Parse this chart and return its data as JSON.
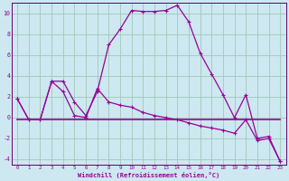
{
  "xlabel": "Windchill (Refroidissement éolien,°C)",
  "bg_color": "#cde8f0",
  "grid_color": "#a0c8b8",
  "line_color": "#990099",
  "spine_color": "#660066",
  "xlim": [
    -0.5,
    23.5
  ],
  "ylim": [
    -4.5,
    11.0
  ],
  "yticks": [
    -4,
    -2,
    0,
    2,
    4,
    6,
    8,
    10
  ],
  "xticks": [
    0,
    1,
    2,
    3,
    4,
    5,
    6,
    7,
    8,
    9,
    10,
    11,
    12,
    13,
    14,
    15,
    16,
    17,
    18,
    19,
    20,
    21,
    22,
    23
  ],
  "curve1_x": [
    0,
    1,
    2,
    3,
    4,
    5,
    6,
    7,
    8,
    9,
    10,
    11,
    12,
    13,
    14,
    15,
    16,
    17,
    18,
    19,
    20,
    21,
    22,
    23
  ],
  "curve1_y": [
    1.8,
    -0.2,
    -0.2,
    3.5,
    3.5,
    1.5,
    0.2,
    2.5,
    7.0,
    8.5,
    10.3,
    10.2,
    10.2,
    10.3,
    10.8,
    9.2,
    6.2,
    4.2,
    2.2,
    0.0,
    2.2,
    -2.0,
    -1.8,
    -4.2
  ],
  "curve2_x": [
    0,
    1,
    2,
    3,
    4,
    5,
    6,
    7,
    8,
    9,
    10,
    11,
    12,
    13,
    14,
    15,
    16,
    17,
    18,
    19,
    20,
    21,
    22,
    23
  ],
  "curve2_y": [
    1.8,
    -0.2,
    -0.2,
    3.5,
    2.5,
    0.2,
    0.0,
    2.8,
    1.5,
    1.2,
    1.0,
    0.5,
    0.2,
    0.0,
    -0.2,
    -0.5,
    -0.8,
    -1.0,
    -1.2,
    -1.5,
    -0.2,
    -2.2,
    -2.0,
    -4.2
  ],
  "curve3_x": [
    0,
    19,
    20,
    23
  ],
  "curve3_y": [
    -0.2,
    -0.2,
    -0.2,
    -0.2
  ]
}
